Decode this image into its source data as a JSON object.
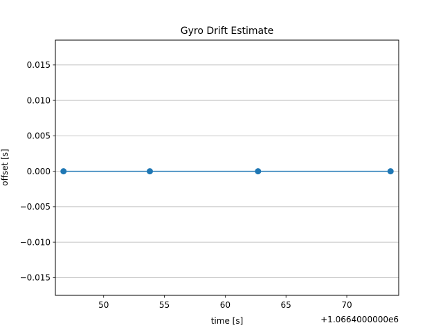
{
  "chart_data": {
    "type": "line",
    "title": "Gyro Drift Estimate",
    "xlabel": "time [s]",
    "ylabel": "offset [s]",
    "x_offset_label": "+1.0664000000e6",
    "x": [
      46.7,
      53.8,
      62.7,
      73.6
    ],
    "y": [
      0.0,
      0.0,
      0.0,
      0.0
    ],
    "xlim": [
      46.03,
      74.27
    ],
    "ylim": [
      -0.0175,
      0.0185
    ],
    "xticks": [
      50,
      55,
      60,
      65,
      70
    ],
    "xtick_labels": [
      "50",
      "55",
      "60",
      "65",
      "70"
    ],
    "yticks": [
      -0.015,
      -0.01,
      -0.005,
      0.0,
      0.005,
      0.01,
      0.015
    ],
    "ytick_labels": [
      "−0.015",
      "−0.010",
      "−0.005",
      "0.000",
      "0.005",
      "0.010",
      "0.015"
    ],
    "grid": "y",
    "series_color": "#1f77b4",
    "grid_color": "#b0b0b0"
  }
}
